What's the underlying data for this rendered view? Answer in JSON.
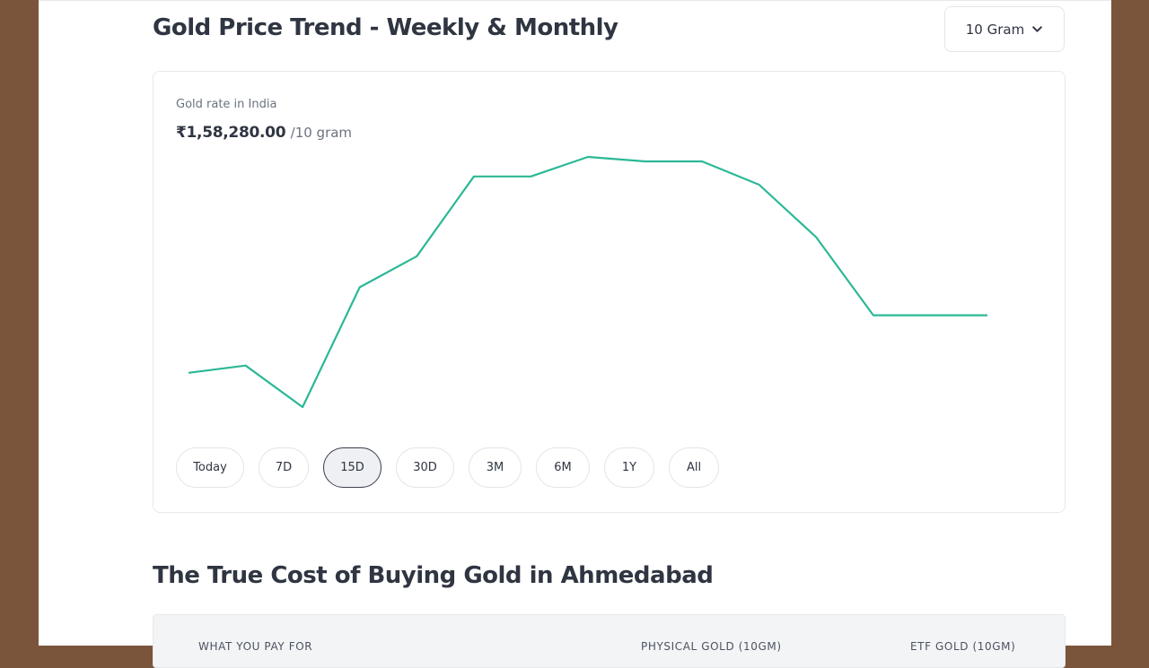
{
  "header": {
    "title": "Gold Price Trend - Weekly & Monthly",
    "unit_select": "10 Gram"
  },
  "card": {
    "rate_label": "Gold rate in India",
    "rate_value": "₹1,58,280.00",
    "rate_unit": "/10 gram"
  },
  "chart_data": {
    "type": "line",
    "series": [
      {
        "values": [
          0.137,
          0.166,
          0.0,
          0.479,
          0.603,
          0.922,
          0.922,
          1.0,
          0.982,
          0.982,
          0.889,
          0.679,
          0.367,
          0.367,
          0.367
        ]
      }
    ],
    "color": "#2bb896"
  },
  "ranges": {
    "items": [
      "Today",
      "7D",
      "15D",
      "30D",
      "3M",
      "6M",
      "1Y",
      "All"
    ],
    "active": "15D"
  },
  "section": {
    "title": "The True Cost of Buying Gold in Ahmedabad"
  },
  "table": {
    "headers": [
      "WHAT YOU PAY FOR",
      "PHYSICAL GOLD (10GM)",
      "ETF GOLD (10GM)"
    ]
  }
}
